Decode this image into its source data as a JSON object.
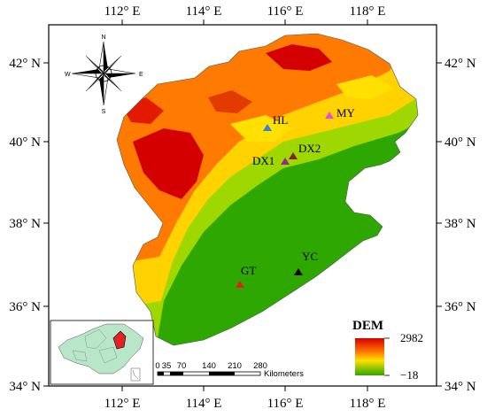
{
  "axes": {
    "lon_labels": [
      "112° E",
      "114° E",
      "116° E",
      "118° E"
    ],
    "lat_labels": [
      "42° N",
      "40° N",
      "38° N",
      "36° N",
      "34° N"
    ]
  },
  "compass": {
    "n": "N",
    "s": "S",
    "e": "E",
    "w": "W"
  },
  "sites": [
    {
      "id": "HL",
      "label": "HL",
      "color": "#3a7fd5"
    },
    {
      "id": "MY",
      "label": "MY",
      "color": "#e64fd0"
    },
    {
      "id": "DX1",
      "label": "DX1",
      "color": "#8a2f8f"
    },
    {
      "id": "DX2",
      "label": "DX2",
      "color": "#8a1f2f"
    },
    {
      "id": "GT",
      "label": "GT",
      "color": "#e02020"
    },
    {
      "id": "YC",
      "label": "YC",
      "color": "#000000"
    }
  ],
  "legend": {
    "title": "DEM",
    "max_label": "2982",
    "min_label": "−18",
    "colors": [
      "#d40000",
      "#ff6a00",
      "#ffe000",
      "#2ea800"
    ]
  },
  "scale_bar": {
    "ticks": [
      "0",
      "35",
      "70",
      "140",
      "210",
      "280"
    ],
    "unit": "Kilometers"
  },
  "colors": {
    "lowland": "#2ea800",
    "midland": "#9fd800",
    "upland": "#ffd200",
    "highland": "#ff7a00",
    "peak": "#d40000"
  }
}
